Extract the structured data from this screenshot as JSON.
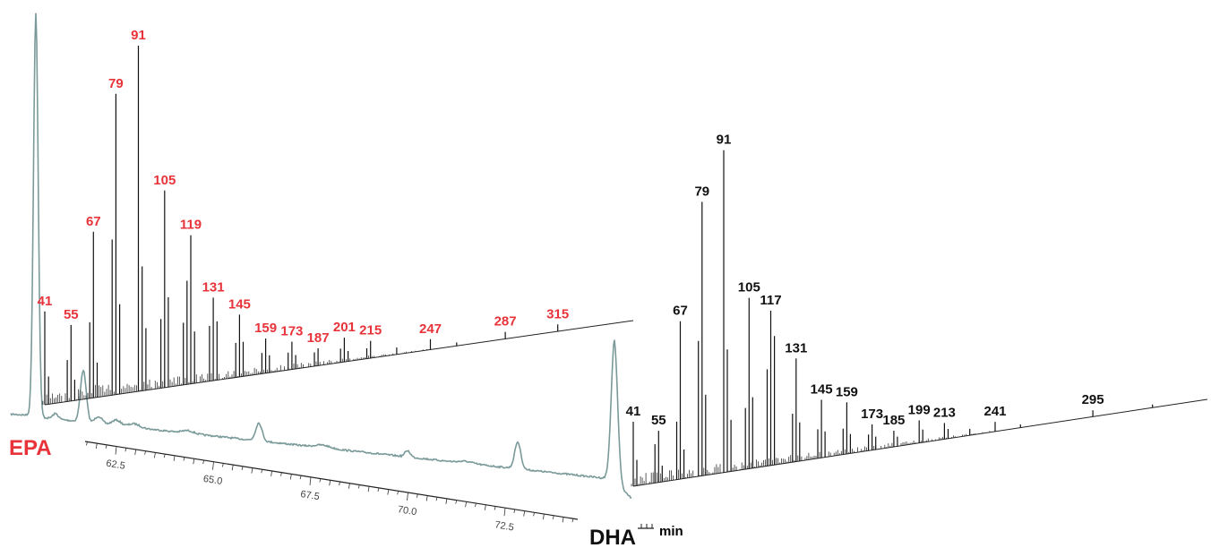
{
  "chart_data": [
    {
      "type": "line",
      "x_unit": "min",
      "x_ticks": [
        62.5,
        65.0,
        67.5,
        70.0,
        72.5
      ],
      "peaks": [
        {
          "rt": 60.3,
          "rel_height": 1.0
        },
        {
          "rt": 61.6,
          "rel_height": 0.12
        },
        {
          "rt": 66.3,
          "rel_height": 0.055
        },
        {
          "rt": 72.9,
          "rel_height": 0.07
        },
        {
          "rt": 73.9,
          "rel_height": 0.28
        }
      ],
      "compound_labels": [
        "EPA",
        "DHA"
      ]
    },
    {
      "type": "bar",
      "name": "EPA",
      "labeled_mz": [
        41,
        55,
        67,
        79,
        91,
        105,
        119,
        131,
        145,
        159,
        173,
        187,
        201,
        215,
        247,
        287,
        315
      ],
      "peaks": [
        [
          41,
          27
        ],
        [
          43,
          8
        ],
        [
          53,
          12
        ],
        [
          55,
          22
        ],
        [
          57,
          6
        ],
        [
          65,
          22
        ],
        [
          67,
          48
        ],
        [
          69,
          10
        ],
        [
          77,
          45
        ],
        [
          79,
          87
        ],
        [
          81,
          26
        ],
        [
          91,
          100
        ],
        [
          93,
          36
        ],
        [
          95,
          18
        ],
        [
          103,
          20
        ],
        [
          105,
          57
        ],
        [
          107,
          26
        ],
        [
          115,
          18
        ],
        [
          117,
          30
        ],
        [
          119,
          43
        ],
        [
          121,
          15
        ],
        [
          129,
          16
        ],
        [
          131,
          24
        ],
        [
          133,
          17
        ],
        [
          143,
          10
        ],
        [
          145,
          18
        ],
        [
          147,
          10
        ],
        [
          157,
          6
        ],
        [
          159,
          10
        ],
        [
          161,
          5
        ],
        [
          171,
          5
        ],
        [
          173,
          8
        ],
        [
          175,
          4
        ],
        [
          185,
          4
        ],
        [
          187,
          5
        ],
        [
          199,
          4
        ],
        [
          201,
          7
        ],
        [
          203,
          3
        ],
        [
          213,
          3
        ],
        [
          215,
          5
        ],
        [
          229,
          2
        ],
        [
          247,
          3
        ],
        [
          261,
          1
        ],
        [
          287,
          2
        ],
        [
          315,
          2
        ]
      ],
      "label_color": "#e8333a"
    },
    {
      "type": "bar",
      "name": "DHA",
      "labeled_mz": [
        41,
        55,
        67,
        79,
        91,
        105,
        117,
        131,
        145,
        159,
        173,
        185,
        199,
        213,
        241,
        295
      ],
      "peaks": [
        [
          41,
          20
        ],
        [
          43,
          8
        ],
        [
          53,
          12
        ],
        [
          55,
          16
        ],
        [
          57,
          5
        ],
        [
          65,
          18
        ],
        [
          67,
          49
        ],
        [
          69,
          9
        ],
        [
          77,
          42
        ],
        [
          79,
          85
        ],
        [
          81,
          25
        ],
        [
          91,
          100
        ],
        [
          93,
          38
        ],
        [
          95,
          16
        ],
        [
          103,
          19
        ],
        [
          105,
          53
        ],
        [
          107,
          22
        ],
        [
          115,
          30
        ],
        [
          117,
          48
        ],
        [
          119,
          40
        ],
        [
          129,
          15
        ],
        [
          131,
          32
        ],
        [
          133,
          12
        ],
        [
          143,
          9
        ],
        [
          145,
          18
        ],
        [
          147,
          8
        ],
        [
          157,
          8
        ],
        [
          159,
          16
        ],
        [
          161,
          6
        ],
        [
          171,
          5
        ],
        [
          173,
          8
        ],
        [
          175,
          4
        ],
        [
          185,
          5
        ],
        [
          187,
          3
        ],
        [
          199,
          7
        ],
        [
          201,
          4
        ],
        [
          213,
          5
        ],
        [
          215,
          3
        ],
        [
          227,
          2
        ],
        [
          241,
          3
        ],
        [
          255,
          1
        ],
        [
          295,
          2
        ],
        [
          328,
          1
        ]
      ],
      "label_color": "#111111"
    }
  ]
}
